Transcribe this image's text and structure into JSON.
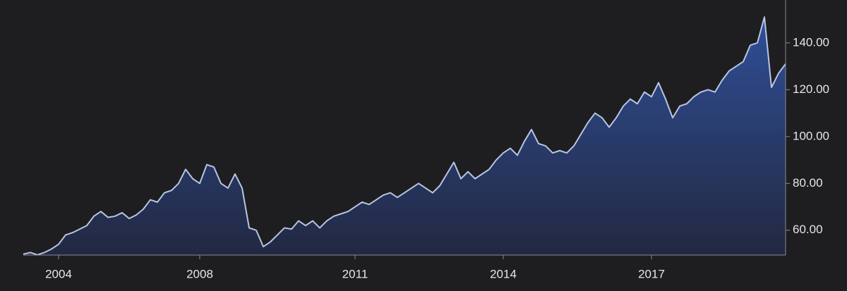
{
  "chart_data": {
    "type": "area",
    "categories": [
      null,
      null,
      null,
      null,
      null,
      "2004",
      null,
      null,
      null,
      null,
      null,
      null,
      null,
      null,
      null,
      null,
      null,
      null,
      null,
      null,
      null,
      null,
      null,
      null,
      null,
      "2008",
      null,
      null,
      null,
      null,
      null,
      null,
      null,
      null,
      null,
      null,
      null,
      null,
      null,
      null,
      null,
      null,
      null,
      null,
      null,
      null,
      null,
      "2011",
      null,
      null,
      null,
      null,
      null,
      null,
      null,
      null,
      null,
      null,
      null,
      null,
      null,
      null,
      null,
      null,
      null,
      null,
      null,
      null,
      "2014",
      null,
      null,
      null,
      null,
      null,
      null,
      null,
      null,
      null,
      null,
      null,
      null,
      null,
      null,
      null,
      null,
      null,
      null,
      null,
      null,
      "2017",
      null,
      null,
      null,
      null,
      null,
      null,
      null,
      null,
      null,
      null,
      null,
      null,
      null,
      null,
      null,
      null,
      null,
      null,
      null
    ],
    "values": [
      49.8,
      50.5,
      49.5,
      50.5,
      52,
      54,
      58,
      59,
      60.5,
      62,
      66,
      68,
      65.5,
      66,
      67.5,
      65,
      66.5,
      69,
      73,
      72,
      76,
      77,
      80,
      86,
      82,
      80,
      88,
      87,
      80,
      78,
      84,
      78,
      61,
      60,
      53,
      55,
      58,
      61,
      60.5,
      64,
      62,
      64,
      61,
      64,
      66,
      67,
      68,
      70,
      72,
      71,
      73,
      75,
      76,
      74,
      76,
      78,
      80,
      78,
      76,
      79,
      84,
      89,
      82,
      85,
      82,
      84,
      86,
      90,
      93,
      95,
      92,
      98,
      103,
      97,
      96,
      93,
      94,
      93,
      96,
      101,
      106,
      110,
      108,
      104,
      108,
      113,
      116,
      114,
      119,
      117,
      123,
      116,
      108,
      113,
      114,
      117,
      119,
      120,
      119,
      124,
      128,
      130,
      132,
      139,
      140,
      151,
      121,
      127,
      131
    ],
    "color": "#b9c5e3",
    "ylim": [
      49.4,
      158.3
    ],
    "yticks": [
      {
        "value": 60,
        "label": "60.00"
      },
      {
        "value": 80,
        "label": "80.00"
      },
      {
        "value": 100,
        "label": "100.00"
      },
      {
        "value": 120,
        "label": "120.00"
      },
      {
        "value": 140,
        "label": "140.00"
      }
    ]
  }
}
